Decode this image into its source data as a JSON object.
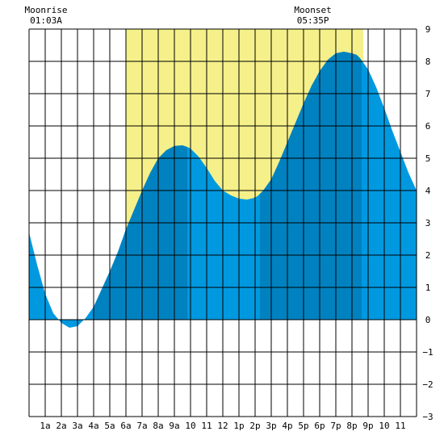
{
  "chart_data": {
    "type": "area",
    "title": "",
    "xlabel": "",
    "ylabel": "",
    "xlim": [
      0,
      24
    ],
    "ylim": [
      -3,
      9
    ],
    "y_ticks": [
      -3,
      -2,
      -1,
      0,
      1,
      2,
      3,
      4,
      5,
      6,
      7,
      8,
      9
    ],
    "x_tick_labels": [
      {
        "x": 1,
        "label": "1a"
      },
      {
        "x": 2,
        "label": "2a"
      },
      {
        "x": 3,
        "label": "3a"
      },
      {
        "x": 4,
        "label": "4a"
      },
      {
        "x": 5,
        "label": "5a"
      },
      {
        "x": 6,
        "label": "6a"
      },
      {
        "x": 7,
        "label": "7a"
      },
      {
        "x": 8,
        "label": "8a"
      },
      {
        "x": 9,
        "label": "9a"
      },
      {
        "x": 10,
        "label": "10"
      },
      {
        "x": 11,
        "label": "11"
      },
      {
        "x": 12,
        "label": "12"
      },
      {
        "x": 13,
        "label": "1p"
      },
      {
        "x": 14,
        "label": "2p"
      },
      {
        "x": 15,
        "label": "3p"
      },
      {
        "x": 16,
        "label": "4p"
      },
      {
        "x": 17,
        "label": "5p"
      },
      {
        "x": 18,
        "label": "6p"
      },
      {
        "x": 19,
        "label": "7p"
      },
      {
        "x": 20,
        "label": "8p"
      },
      {
        "x": 21,
        "label": "9p"
      },
      {
        "x": 22,
        "label": "10"
      },
      {
        "x": 23,
        "label": "11"
      }
    ],
    "grid": true,
    "daylight": {
      "start": 6.0,
      "end": 20.7
    },
    "tide_series": {
      "x": [
        0,
        0.5,
        1,
        1.5,
        2,
        2.5,
        3,
        3.5,
        4,
        4.5,
        5,
        5.5,
        6,
        6.5,
        7,
        7.5,
        8,
        8.5,
        9,
        9.5,
        9.8,
        10,
        10.5,
        11,
        11.5,
        12,
        12.5,
        13,
        13.5,
        14,
        14.2,
        14.5,
        15,
        15.5,
        16,
        16.5,
        17,
        17.5,
        18,
        18.5,
        19,
        19.5,
        20,
        20.3,
        20.5,
        21,
        21.5,
        22,
        22.5,
        23,
        23.5,
        24
      ],
      "y": [
        2.7,
        1.7,
        0.8,
        0.2,
        -0.1,
        -0.25,
        -0.2,
        0.05,
        0.4,
        0.95,
        1.5,
        2.1,
        2.8,
        3.4,
        4.0,
        4.55,
        5.0,
        5.25,
        5.38,
        5.4,
        5.35,
        5.3,
        5.05,
        4.7,
        4.3,
        4.0,
        3.85,
        3.75,
        3.72,
        3.78,
        3.85,
        4.0,
        4.35,
        4.9,
        5.5,
        6.1,
        6.7,
        7.25,
        7.7,
        8.05,
        8.25,
        8.3,
        8.25,
        8.2,
        8.1,
        7.75,
        7.2,
        6.55,
        5.85,
        5.2,
        4.55,
        4.0
      ],
      "shade_segments": [
        {
          "from": 0,
          "to": 4.0,
          "tone": "light"
        },
        {
          "from": 4.0,
          "to": 9.8,
          "tone": "dark"
        },
        {
          "from": 9.8,
          "to": 14.3,
          "tone": "light"
        },
        {
          "from": 14.3,
          "to": 20.6,
          "tone": "dark"
        },
        {
          "from": 20.6,
          "to": 24,
          "tone": "light"
        }
      ]
    },
    "annotations": [
      {
        "event": "Moonrise",
        "time": "01:03A",
        "x": 1.05
      },
      {
        "event": "Moonset",
        "time": "05:35P",
        "x": 17.58
      }
    ],
    "colors": {
      "daylight": "#f5f08a",
      "water_light": "#0099e0",
      "water_dark": "#0082c0",
      "grid": "#000000",
      "background": "#ffffff"
    }
  }
}
